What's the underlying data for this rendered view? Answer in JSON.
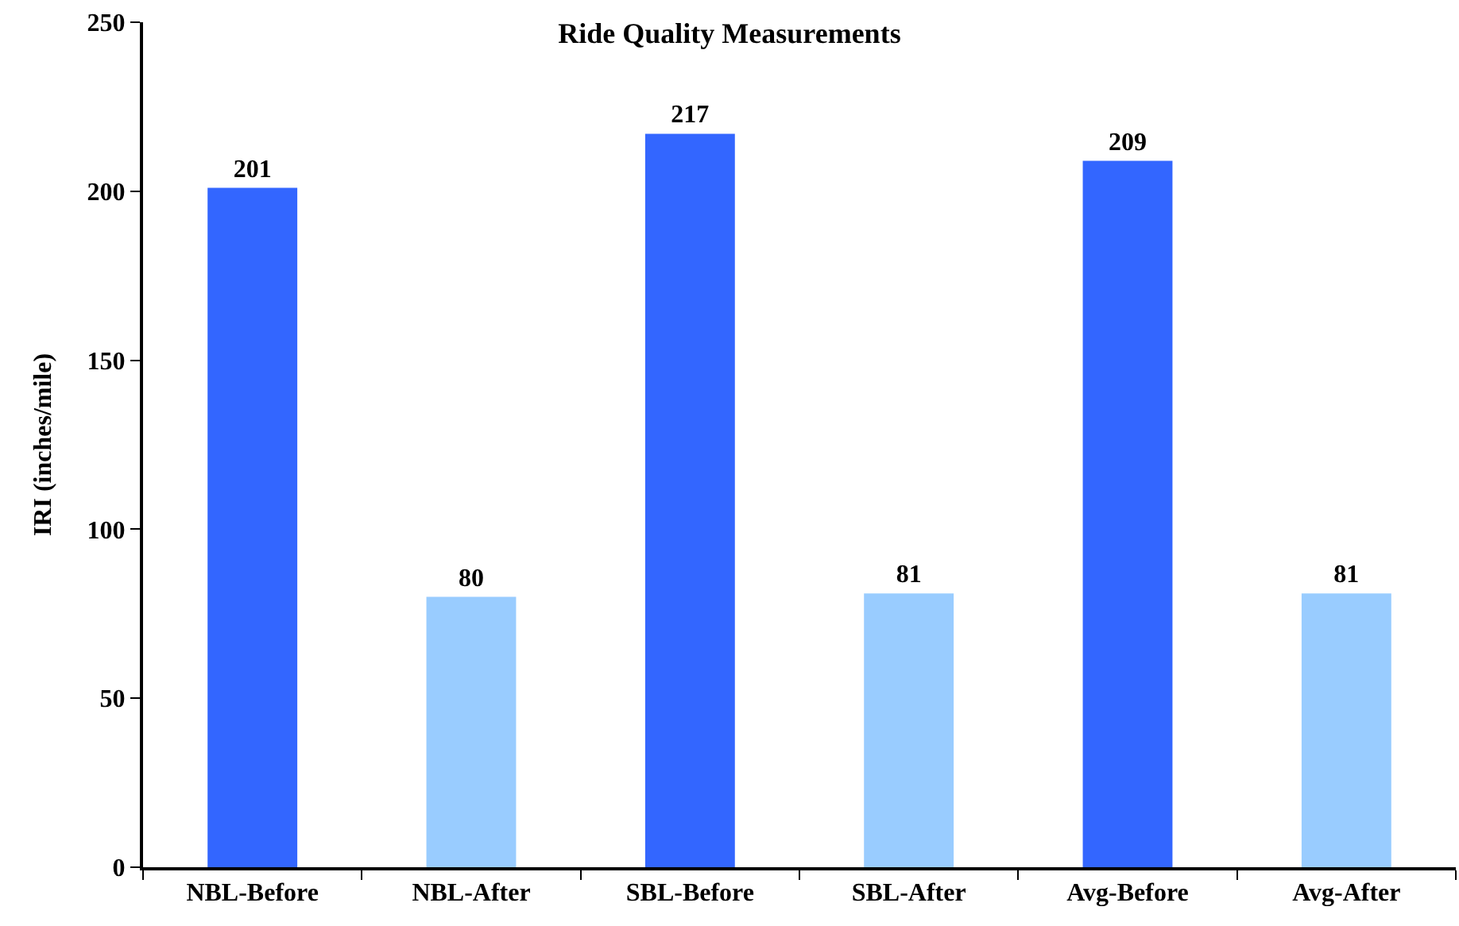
{
  "chart_data": {
    "type": "bar",
    "title": "Ride Quality Measurements",
    "ylabel": "IRI (inches/mile)",
    "categories": [
      "NBL-Before",
      "NBL-After",
      "SBL-Before",
      "SBL-After",
      "Avg-Before",
      "Avg-After"
    ],
    "values": [
      201,
      80,
      217,
      81,
      209,
      81
    ],
    "colors": [
      "#3366ff",
      "#99ccff",
      "#3366ff",
      "#99ccff",
      "#3366ff",
      "#99ccff"
    ],
    "ylim": [
      0,
      250
    ],
    "yticks": [
      0,
      50,
      100,
      150,
      200,
      250
    ],
    "grid": false,
    "data_labels": true
  }
}
